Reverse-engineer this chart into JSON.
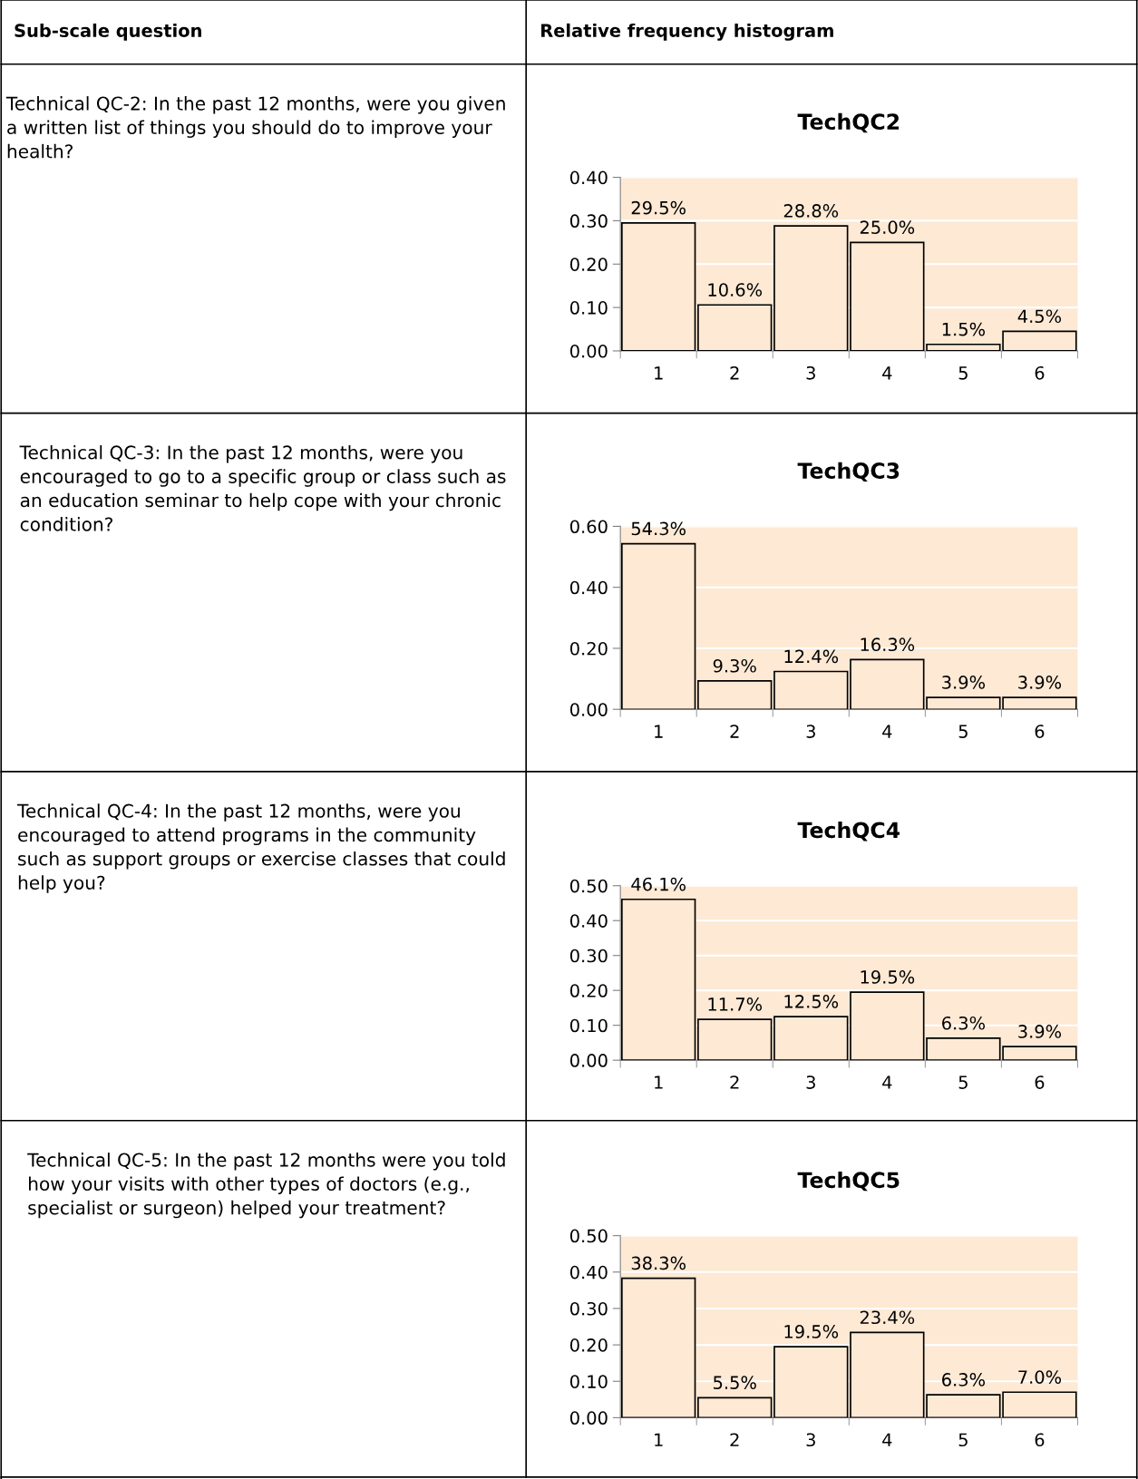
{
  "chart_data": [
    {
      "type": "bar",
      "title": "TechQC2",
      "categories": [
        "1",
        "2",
        "3",
        "4",
        "5",
        "6"
      ],
      "values": [
        0.295,
        0.106,
        0.288,
        0.25,
        0.015,
        0.045
      ],
      "value_labels": [
        "29.5%",
        "10.6%",
        "28.8%",
        "25.0%",
        "1.5%",
        "4.5%"
      ],
      "color": "#fde9d4",
      "ylim": [
        0,
        0.4
      ],
      "yticks": [
        {
          "value": 0,
          "label": "0.00"
        },
        {
          "value": 0.1,
          "label": "0.10"
        },
        {
          "value": 0.2,
          "label": "0.20"
        },
        {
          "value": 0.3,
          "label": "0.30"
        },
        {
          "value": 0.4,
          "label": "0.40"
        }
      ],
      "grid": "y",
      "legend": false,
      "annotations": [
        "Sub-scale question",
        "Relative frequency histogram",
        "Technical QC-2: In the past 12 months, were you given a written list of things you should do to improve your health?"
      ]
    },
    {
      "type": "bar",
      "title": "TechQC3",
      "categories": [
        "1",
        "2",
        "3",
        "4",
        "5",
        "6"
      ],
      "values": [
        0.543,
        0.093,
        0.124,
        0.163,
        0.039,
        0.039
      ],
      "value_labels": [
        "54.3%",
        "9.3%",
        "12.4%",
        "16.3%",
        "3.9%",
        "3.9%"
      ],
      "color": "#fde9d4",
      "ylim": [
        0,
        0.6
      ],
      "yticks": [
        {
          "value": 0,
          "label": "0.00"
        },
        {
          "value": 0.2,
          "label": "0.20"
        },
        {
          "value": 0.4,
          "label": "0.40"
        },
        {
          "value": 0.6,
          "label": "0.60"
        }
      ],
      "grid": "y",
      "legend": false,
      "annotations": [
        "Technical QC-3: In the past 12 months, were you encouraged to go to a specific group or class such as an education seminar to help cope with your chronic condition?"
      ]
    },
    {
      "type": "bar",
      "title": "TechQC4",
      "categories": [
        "1",
        "2",
        "3",
        "4",
        "5",
        "6"
      ],
      "values": [
        0.461,
        0.117,
        0.125,
        0.195,
        0.063,
        0.039
      ],
      "value_labels": [
        "46.1%",
        "11.7%",
        "12.5%",
        "19.5%",
        "6.3%",
        "3.9%"
      ],
      "color": "#fde9d4",
      "ylim": [
        0,
        0.5
      ],
      "yticks": [
        {
          "value": 0,
          "label": "0.00"
        },
        {
          "value": 0.1,
          "label": "0.10"
        },
        {
          "value": 0.2,
          "label": "0.20"
        },
        {
          "value": 0.3,
          "label": "0.30"
        },
        {
          "value": 0.4,
          "label": "0.40"
        },
        {
          "value": 0.5,
          "label": "0.50"
        }
      ],
      "grid": "y",
      "legend": false,
      "annotations": [
        "Technical QC-4: In the past 12 months, were you encouraged to attend programs in the community such as support groups or exercise classes that could help you?"
      ]
    },
    {
      "type": "bar",
      "title": "TechQC5",
      "categories": [
        "1",
        "2",
        "3",
        "4",
        "5",
        "6"
      ],
      "values": [
        0.383,
        0.055,
        0.195,
        0.234,
        0.063,
        0.07
      ],
      "value_labels": [
        "38.3%",
        "5.5%",
        "19.5%",
        "23.4%",
        "6.3%",
        "7.0%"
      ],
      "color": "#fde9d4",
      "ylim": [
        0,
        0.5
      ],
      "yticks": [
        {
          "value": 0,
          "label": "0.00"
        },
        {
          "value": 0.1,
          "label": "0.10"
        },
        {
          "value": 0.2,
          "label": "0.20"
        },
        {
          "value": 0.3,
          "label": "0.30"
        },
        {
          "value": 0.4,
          "label": "0.40"
        },
        {
          "value": 0.5,
          "label": "0.50"
        }
      ],
      "grid": "y",
      "legend": false,
      "annotations": [
        "Technical QC-5: In the past 12 months were you told how your visits with other types of doctors (e.g., specialist or surgeon) helped your treatment?"
      ]
    }
  ]
}
